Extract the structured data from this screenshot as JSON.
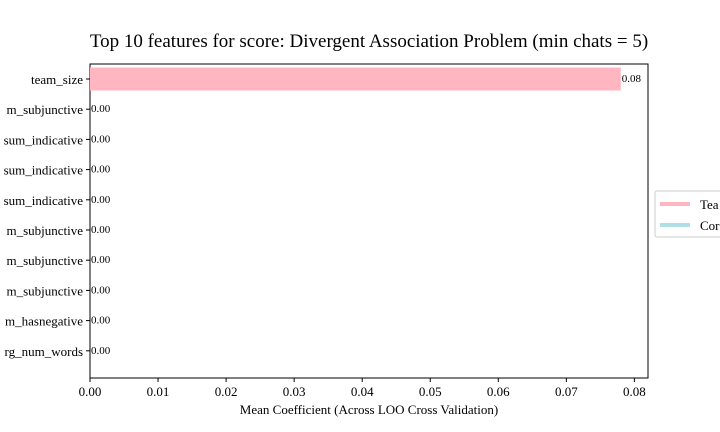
{
  "chart_data": {
    "type": "bar",
    "orientation": "horizontal",
    "title": "Top 10 features for score: Divergent Association Problem (min chats = 5)",
    "xlabel": "Mean Coefficient (Across LOO Cross Validation)",
    "ylabel": "",
    "xlim": [
      0.0,
      0.082
    ],
    "xticks": [
      "0.00",
      "0.01",
      "0.02",
      "0.03",
      "0.04",
      "0.05",
      "0.06",
      "0.07",
      "0.08"
    ],
    "categories": [
      "team_size",
      "m_subjunctive",
      "sum_indicative",
      "sum_indicative",
      "sum_indicative",
      "m_subjunctive",
      "m_subjunctive",
      "m_subjunctive",
      "m_hasnegative",
      "rg_num_words"
    ],
    "values": [
      0.078,
      0.0,
      0.0,
      0.0,
      0.0,
      0.0,
      0.0,
      0.0,
      0.0,
      0.0
    ],
    "value_labels": [
      "0.08",
      "0.00",
      "0.00",
      "0.00",
      "0.00",
      "0.00",
      "0.00",
      "0.00",
      "0.00",
      "0.00"
    ],
    "bar_colors": [
      "#ffb6c1",
      "#b0e0e6",
      "#b0e0e6",
      "#b0e0e6",
      "#b0e0e6",
      "#b0e0e6",
      "#b0e0e6",
      "#b0e0e6",
      "#b0e0e6",
      "#b0e0e6"
    ],
    "legend": {
      "placement": "center-right",
      "entries": [
        {
          "label": "Tea",
          "color": "#ffb6c1"
        },
        {
          "label": "Cor",
          "color": "#b0e0e6"
        }
      ]
    },
    "grid": false
  }
}
